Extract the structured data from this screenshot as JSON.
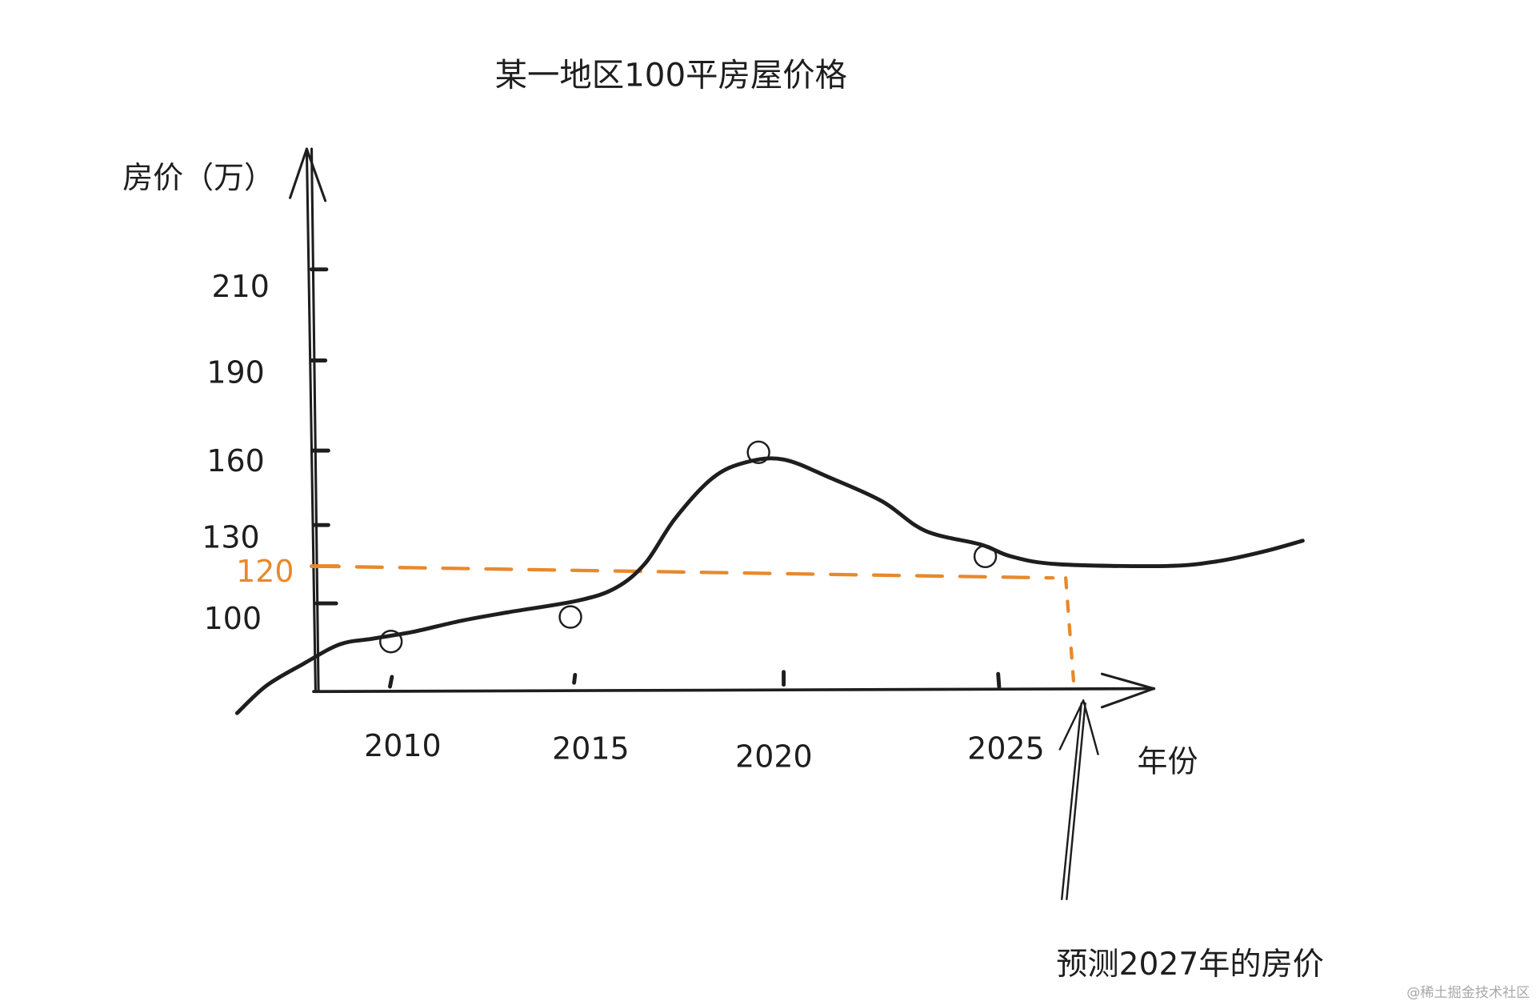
{
  "chart_data": {
    "type": "line",
    "title": "某一地区100平房屋价格",
    "ylabel": "房价（万）",
    "xlabel": "年份",
    "x_ticks": [
      "2010",
      "2015",
      "2020",
      "2025"
    ],
    "x_tick_values": [
      2010,
      2015,
      2020,
      2025
    ],
    "y_ticks": [
      "210",
      "190",
      "160",
      "130",
      "100"
    ],
    "y_tick_values": [
      210,
      190,
      160,
      130,
      100
    ],
    "highlight_tick": {
      "label": "120",
      "value": 120
    },
    "series": [
      {
        "x": [
          2005.8,
          2006.6,
          2007.6,
          2008.6,
          2009.5,
          2010.6,
          2011.9,
          2013.2,
          2015.1,
          2016.0,
          2016.7,
          2017.4,
          2018.3,
          2019.1,
          2020.0,
          2021.1,
          2022.3,
          2023.3,
          2024.6,
          2025.3,
          2026.4,
          2028.9,
          2030.1,
          2031.2,
          2032.1
        ],
        "y": [
          58,
          68.5,
          76.8,
          84.3,
          86.5,
          89.1,
          93.3,
          96.6,
          101.1,
          106,
          115.4,
          132.4,
          148.9,
          155.3,
          156.4,
          148.9,
          139.5,
          127.8,
          122.5,
          118,
          115,
          114.3,
          116.1,
          119.9,
          124
        ]
      }
    ],
    "points": {
      "x": [
        2010,
        2014.9,
        2019.4,
        2024.7
      ],
      "y": [
        85.4,
        94.8,
        159.3,
        118
      ]
    },
    "prediction": {
      "year": 2027,
      "value": 120
    },
    "annotation": "预测2027年的房价",
    "grid": false,
    "colors": {
      "ink": "#1e1e1e",
      "highlight": "#e8892b"
    }
  },
  "watermark": "@稀土掘金技术社区"
}
